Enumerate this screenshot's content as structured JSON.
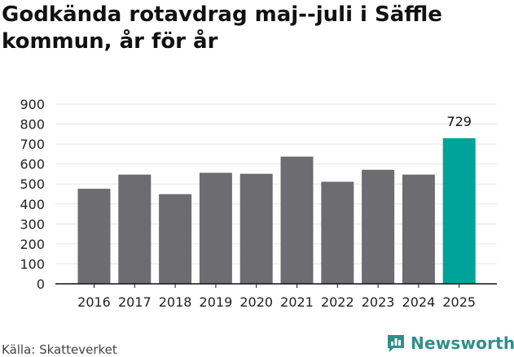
{
  "title": "Godkända rotavdrag maj--juli i Säffle kommun, år för år",
  "source": "Källa: Skatteverket",
  "brand": {
    "name": "Newsworthy",
    "icon": "bar-chart-speech-bubble-icon"
  },
  "colors": {
    "bar": "#6d6c71",
    "highlight": "#00a399",
    "axis": "#111111",
    "grid": "#e6e6e6",
    "brand": "#2f8f8a"
  },
  "chart_data": {
    "type": "bar",
    "categories": [
      "2016",
      "2017",
      "2018",
      "2019",
      "2020",
      "2021",
      "2022",
      "2023",
      "2024",
      "2025"
    ],
    "values": [
      476,
      547,
      449,
      556,
      551,
      637,
      511,
      571,
      547,
      729
    ],
    "highlight_index": 9,
    "data_labels": [
      {
        "index": 9,
        "text": "729"
      }
    ],
    "yticks": [
      0,
      100,
      200,
      300,
      400,
      500,
      600,
      700,
      800,
      900
    ],
    "ylim": [
      0,
      900
    ],
    "xlabel": "",
    "ylabel": "",
    "grid": true
  }
}
